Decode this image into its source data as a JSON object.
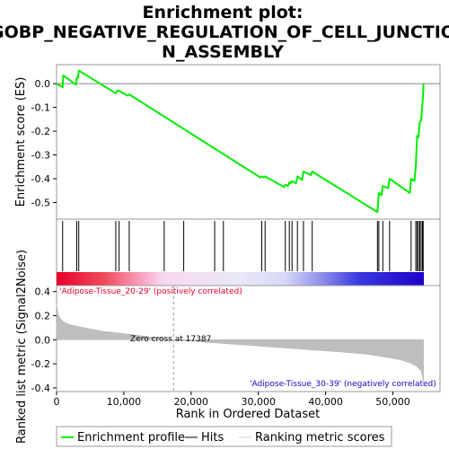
{
  "chart_data": {
    "type": "line",
    "title_lines": [
      "Enrichment plot:",
      "GOBP_NEGATIVE_REGULATION_OF_CELL_JUNCTIO",
      "N_ASSEMBLY"
    ],
    "top_panel": {
      "ylabel": "Enrichment score (ES)",
      "ylim": [
        -0.57,
        0.08
      ],
      "yticks": [
        0.0,
        -0.1,
        -0.2,
        -0.3,
        -0.4,
        -0.5
      ],
      "ytick_labels": [
        "0.0",
        "-0.1",
        "-0.2",
        "-0.3",
        "-0.4",
        "-0.5"
      ],
      "series": [
        {
          "name": "Enrichment profile",
          "color": "#00ee00",
          "x": [
            0,
            900,
            1000,
            2900,
            3000,
            3200,
            3300,
            8800,
            9000,
            9300,
            10500,
            10800,
            30300,
            30500,
            30800,
            31000,
            33800,
            34000,
            34400,
            34600,
            34800,
            35000,
            35600,
            35800,
            36500,
            36700,
            37800,
            38000,
            47700,
            47900,
            48300,
            48500,
            49300,
            49500,
            52500,
            52700,
            53200,
            53400,
            53600,
            53800,
            54000,
            54200,
            54400,
            54500,
            54550
          ],
          "y": [
            0.0,
            -0.015,
            0.035,
            -0.005,
            0.025,
            0.025,
            0.055,
            -0.04,
            -0.03,
            -0.03,
            -0.05,
            -0.045,
            -0.395,
            -0.39,
            -0.395,
            -0.39,
            -0.435,
            -0.425,
            -0.43,
            -0.415,
            -0.42,
            -0.41,
            -0.42,
            -0.39,
            -0.405,
            -0.37,
            -0.385,
            -0.37,
            -0.54,
            -0.46,
            -0.47,
            -0.43,
            -0.44,
            -0.4,
            -0.46,
            -0.4,
            -0.41,
            -0.35,
            -0.22,
            -0.225,
            -0.16,
            -0.155,
            -0.08,
            -0.04,
            0.0
          ]
        }
      ],
      "hits_x": [
        900,
        3000,
        3300,
        8800,
        9300,
        10800,
        16000,
        18900,
        23500,
        24800,
        30500,
        31000,
        34000,
        34600,
        35000,
        35800,
        36700,
        38000,
        47700,
        47900,
        48500,
        49500,
        52700,
        53400,
        53600,
        53800,
        54000,
        54200,
        54400,
        54500
      ]
    },
    "middle_panel": {
      "colormap_left": "#e8002c",
      "colormap_right": "#1e00c8"
    },
    "bottom_panel": {
      "ylabel": "Ranked list metric (Signal2Noise)",
      "xlabel": "Rank in Ordered Dataset",
      "xlim": [
        0,
        57000
      ],
      "ylim": [
        -0.43,
        0.45
      ],
      "xticks": [
        0,
        10000,
        20000,
        30000,
        40000,
        50000
      ],
      "xtick_labels": [
        "0",
        "10,000",
        "20,000",
        "30,000",
        "40,000",
        "50,000"
      ],
      "yticks": [
        0.4,
        0.2,
        0.0,
        -0.2,
        -0.4
      ],
      "ytick_labels": [
        "0.4",
        "0.2",
        "0.0",
        "-0.2",
        "-0.4"
      ],
      "metric_profile": {
        "x": [
          0,
          200,
          500,
          1000,
          2000,
          4000,
          7000,
          10000,
          13000,
          17387,
          22000,
          27000,
          32000,
          37000,
          42000,
          46000,
          49000,
          51000,
          52500,
          53500,
          54200,
          54550
        ],
        "y": [
          0.3,
          0.22,
          0.18,
          0.15,
          0.125,
          0.1,
          0.07,
          0.05,
          0.03,
          0.0,
          -0.02,
          -0.04,
          -0.06,
          -0.08,
          -0.1,
          -0.12,
          -0.145,
          -0.165,
          -0.19,
          -0.22,
          -0.26,
          -0.35
        ]
      },
      "zero_cross_x": 17387,
      "annotations": {
        "zero_cross": "Zero cross at 17387",
        "positive": "'Adipose-Tissue_20-29' (positively correlated)",
        "negative": "'Adipose-Tissue_30-39' (negatively correlated)"
      }
    },
    "legend": {
      "items": [
        {
          "label": "Enrichment profile",
          "color": "#00ee00"
        },
        {
          "label": "Hits",
          "color": "#000000"
        },
        {
          "label": "Ranking metric scores",
          "color": "#c8c8c8"
        }
      ]
    }
  }
}
